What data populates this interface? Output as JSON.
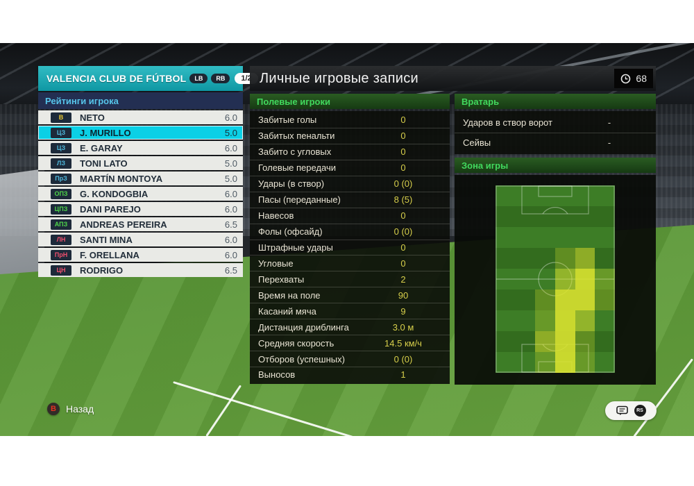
{
  "colors": {
    "accent_teal": "#16a2ad",
    "selected_row": "#0bd0e6",
    "section_green": "#41d85d",
    "value_yellow": "#d7cf4b",
    "heat_yellow": "#d8e230",
    "position": {
      "gk": "#e9c832",
      "def": "#4fb9dd",
      "mid": "#4ed44a",
      "fwd": "#f0506e"
    }
  },
  "sidebar": {
    "team_name": "VALENCIA CLUB DE FÚTBOL",
    "bumper_left": "LB",
    "bumper_right": "RB",
    "page_indicator": "1/2",
    "section_title": "Рейтинги игрока",
    "players": [
      {
        "pos": "В",
        "pos_type": "gk",
        "name": "NETO",
        "rating": "6.0",
        "selected": false
      },
      {
        "pos": "ЦЗ",
        "pos_type": "def",
        "name": "J. MURILLO",
        "rating": "5.0",
        "selected": true
      },
      {
        "pos": "ЦЗ",
        "pos_type": "def",
        "name": "E. GARAY",
        "rating": "6.0",
        "selected": false
      },
      {
        "pos": "ЛЗ",
        "pos_type": "def",
        "name": "TONI LATO",
        "rating": "5.0",
        "selected": false
      },
      {
        "pos": "ПрЗ",
        "pos_type": "def",
        "name": "MARTÍN MONTOYA",
        "rating": "5.0",
        "selected": false
      },
      {
        "pos": "ОПЗ",
        "pos_type": "mid",
        "name": "G. KONDOGBIA",
        "rating": "6.0",
        "selected": false
      },
      {
        "pos": "ЦПЗ",
        "pos_type": "mid",
        "name": "DANI PAREJO",
        "rating": "6.0",
        "selected": false
      },
      {
        "pos": "АПЗ",
        "pos_type": "mid",
        "name": "ANDREAS PEREIRA",
        "rating": "6.5",
        "selected": false
      },
      {
        "pos": "ЛН",
        "pos_type": "fwd",
        "name": "SANTI MINA",
        "rating": "6.0",
        "selected": false
      },
      {
        "pos": "ПрН",
        "pos_type": "fwd",
        "name": "F. ORELLANA",
        "rating": "6.0",
        "selected": false
      },
      {
        "pos": "ЦН",
        "pos_type": "fwd",
        "name": "RODRIGO",
        "rating": "6.5",
        "selected": false
      }
    ]
  },
  "main": {
    "title": "Личные игровые записи",
    "time_value": "68",
    "field_players_header": "Полевые игроки",
    "goalkeeper_header": "Вратарь",
    "zone_header": "Зона игры",
    "field_stats": [
      {
        "label": "Забитые голы",
        "value": "0"
      },
      {
        "label": "Забитых пенальти",
        "value": "0"
      },
      {
        "label": "Забито с угловых",
        "value": "0"
      },
      {
        "label": "Голевые передачи",
        "value": "0"
      },
      {
        "label": "Удары (в створ)",
        "value": "0 (0)"
      },
      {
        "label": "Пасы (переданные)",
        "value": "8 (5)"
      },
      {
        "label": "Навесов",
        "value": "0"
      },
      {
        "label": "Фолы (офсайд)",
        "value": "0 (0)"
      },
      {
        "label": "Штрафные удары",
        "value": "0"
      },
      {
        "label": "Угловые",
        "value": "0"
      },
      {
        "label": "Перехваты",
        "value": "2"
      },
      {
        "label": "Время на поле",
        "value": "90"
      },
      {
        "label": "Касаний мяча",
        "value": "9"
      },
      {
        "label": "Дистанция дриблинга",
        "value": "3.0 м"
      },
      {
        "label": "Средняя скорость",
        "value": "14.5 км/ч"
      },
      {
        "label": "Отборов (успешных)",
        "value": "0 (0)"
      },
      {
        "label": "Выносов",
        "value": "1"
      }
    ],
    "gk_stats": [
      {
        "label": "Ударов в створ ворот",
        "value": "-"
      },
      {
        "label": "Сейвы",
        "value": "-"
      }
    ],
    "heatmap": {
      "cols": 6,
      "rows": 9,
      "alpha": {
        "1": 0.28,
        "2": 0.55,
        "3": 0.9
      },
      "cells": [
        [
          0,
          0,
          0,
          0,
          0,
          0
        ],
        [
          0,
          0,
          0,
          0,
          0,
          0
        ],
        [
          0,
          0,
          0,
          0,
          0,
          0
        ],
        [
          0,
          0,
          0,
          1,
          2,
          0
        ],
        [
          0,
          0,
          0,
          2,
          3,
          1
        ],
        [
          0,
          0,
          1,
          3,
          3,
          1
        ],
        [
          0,
          0,
          1,
          3,
          2,
          0
        ],
        [
          0,
          0,
          2,
          3,
          1,
          0
        ],
        [
          0,
          0,
          1,
          3,
          1,
          0
        ]
      ]
    }
  },
  "footer": {
    "back_button_glyph": "B",
    "back_label": "Назад",
    "rs_glyph": "RS"
  }
}
